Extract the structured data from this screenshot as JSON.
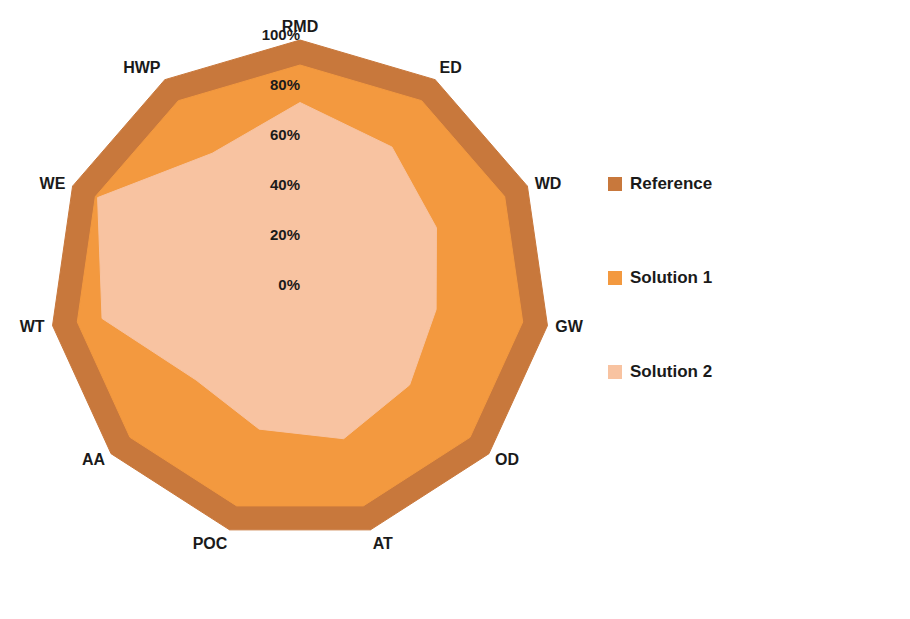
{
  "chart_data": {
    "type": "radar",
    "categories": [
      "RMD",
      "ED",
      "WD",
      "GW",
      "OD",
      "AT",
      "POC",
      "AA",
      "WT",
      "WE",
      "HWP"
    ],
    "series": [
      {
        "name": "Reference",
        "color": "#c8783c",
        "values": [
          100,
          100,
          100,
          100,
          100,
          100,
          100,
          100,
          100,
          100,
          100
        ]
      },
      {
        "name": "Solution 1",
        "color": "#f3993f",
        "values": [
          90,
          90,
          90,
          90,
          90,
          90,
          90,
          90,
          90,
          90,
          90
        ]
      },
      {
        "name": "Solution 2",
        "color": "#f8c3a1",
        "values": [
          75,
          68,
          60,
          55,
          58,
          62,
          58,
          55,
          80,
          89,
          65
        ]
      }
    ],
    "ylim": [
      0,
      100
    ],
    "yticks": [
      {
        "value": 0,
        "label": "0%"
      },
      {
        "value": 20,
        "label": "20%"
      },
      {
        "value": 40,
        "label": "40%"
      },
      {
        "value": 60,
        "label": "60%"
      },
      {
        "value": 80,
        "label": "80%"
      },
      {
        "value": 100,
        "label": "100%"
      }
    ],
    "grid": true,
    "legend": "right"
  }
}
